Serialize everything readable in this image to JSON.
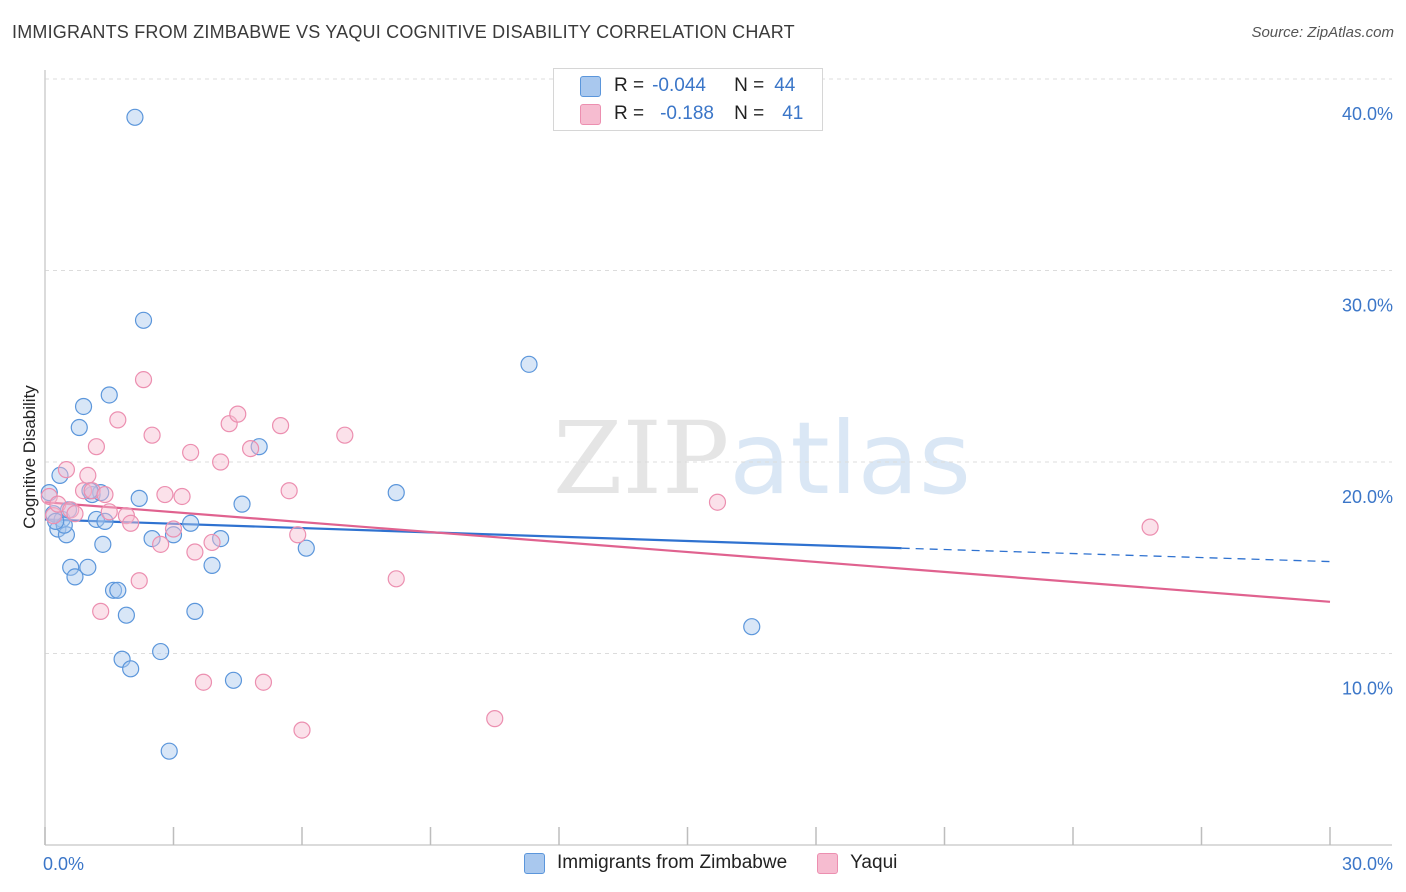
{
  "title": "IMMIGRANTS FROM ZIMBABWE VS YAQUI COGNITIVE DISABILITY CORRELATION CHART",
  "source": "Source: ZipAtlas.com",
  "watermark": {
    "zip": "ZIP",
    "atlas": "atlas"
  },
  "legend": {
    "rows": [
      {
        "r_label": "R =",
        "r_value": "-0.044",
        "n_label": "N =",
        "n_value": "44",
        "color": "#a9c8ee"
      },
      {
        "r_label": "R =",
        "r_value": "-0.188",
        "n_label": "N =",
        "n_value": "41",
        "color": "#f6bcd0"
      }
    ]
  },
  "bottom_legend": [
    {
      "label": "Immigrants from Zimbabwe",
      "color": "#a9c8ee"
    },
    {
      "label": "Yaqui",
      "color": "#f6bcd0"
    }
  ],
  "chart_data": {
    "type": "scatter",
    "title": "IMMIGRANTS FROM ZIMBABWE VS YAQUI COGNITIVE DISABILITY CORRELATION CHART",
    "ylabel": "Cognitive Disability",
    "xlabel": "",
    "xlim": [
      0,
      30
    ],
    "ylim": [
      0,
      40
    ],
    "x_tick_labels": [
      "0.0%",
      "30.0%"
    ],
    "y_ticks": [
      10,
      20,
      30,
      40
    ],
    "y_tick_labels": [
      "10.0%",
      "20.0%",
      "30.0%",
      "40.0%"
    ],
    "series": [
      {
        "name": "Immigrants from Zimbabwe",
        "stroke": "#5b96db",
        "fill": "#a9c8ee",
        "trend_color": "#2f72d0",
        "trend": {
          "x0": 0,
          "y0": 17.0,
          "x1": 20,
          "y1": 15.5,
          "x_dash_end": 30,
          "y_dash_end": 14.8
        },
        "points": [
          [
            0.1,
            18.4
          ],
          [
            0.2,
            17.3
          ],
          [
            0.3,
            16.5
          ],
          [
            0.4,
            17.0
          ],
          [
            0.5,
            16.2
          ],
          [
            0.6,
            14.5
          ],
          [
            0.7,
            14.0
          ],
          [
            0.8,
            21.8
          ],
          [
            0.9,
            22.9
          ],
          [
            1.0,
            14.5
          ],
          [
            1.1,
            18.3
          ],
          [
            1.2,
            17.0
          ],
          [
            1.3,
            18.4
          ],
          [
            1.4,
            16.9
          ],
          [
            1.5,
            23.5
          ],
          [
            1.6,
            13.3
          ],
          [
            1.7,
            13.3
          ],
          [
            1.8,
            9.7
          ],
          [
            1.9,
            12.0
          ],
          [
            2.0,
            9.2
          ],
          [
            2.2,
            18.1
          ],
          [
            2.3,
            27.4
          ],
          [
            2.5,
            16.0
          ],
          [
            2.7,
            10.1
          ],
          [
            3.0,
            16.2
          ],
          [
            3.4,
            16.8
          ],
          [
            2.1,
            38.0
          ],
          [
            2.9,
            4.9
          ],
          [
            3.5,
            12.2
          ],
          [
            3.9,
            14.6
          ],
          [
            4.1,
            16.0
          ],
          [
            4.4,
            8.6
          ],
          [
            4.6,
            17.8
          ],
          [
            5.0,
            20.8
          ],
          [
            6.1,
            15.5
          ],
          [
            8.2,
            18.4
          ],
          [
            11.3,
            25.1
          ],
          [
            16.5,
            11.4
          ],
          [
            0.35,
            19.3
          ],
          [
            0.45,
            16.7
          ],
          [
            0.55,
            17.5
          ],
          [
            1.05,
            18.5
          ],
          [
            0.25,
            16.9
          ],
          [
            1.35,
            15.7
          ]
        ]
      },
      {
        "name": "Yaqui",
        "stroke": "#ec8fb0",
        "fill": "#f6bcd0",
        "trend_color": "#e0628f",
        "trend": {
          "x0": 0,
          "y0": 17.9,
          "x1": 30,
          "y1": 12.7
        },
        "points": [
          [
            0.1,
            18.2
          ],
          [
            0.2,
            17.2
          ],
          [
            0.3,
            17.8
          ],
          [
            0.5,
            19.6
          ],
          [
            0.6,
            17.5
          ],
          [
            0.7,
            17.3
          ],
          [
            0.9,
            18.5
          ],
          [
            1.0,
            19.3
          ],
          [
            1.1,
            18.5
          ],
          [
            1.2,
            20.8
          ],
          [
            1.4,
            18.3
          ],
          [
            1.5,
            17.4
          ],
          [
            1.7,
            22.2
          ],
          [
            1.9,
            17.2
          ],
          [
            2.0,
            16.8
          ],
          [
            2.2,
            13.8
          ],
          [
            2.3,
            24.3
          ],
          [
            2.5,
            21.4
          ],
          [
            2.7,
            15.7
          ],
          [
            2.8,
            18.3
          ],
          [
            3.0,
            16.5
          ],
          [
            3.2,
            18.2
          ],
          [
            3.4,
            20.5
          ],
          [
            3.5,
            15.3
          ],
          [
            3.7,
            8.5
          ],
          [
            3.9,
            15.8
          ],
          [
            4.1,
            20.0
          ],
          [
            4.3,
            22.0
          ],
          [
            4.5,
            22.5
          ],
          [
            4.8,
            20.7
          ],
          [
            5.1,
            8.5
          ],
          [
            5.5,
            21.9
          ],
          [
            5.7,
            18.5
          ],
          [
            5.9,
            16.2
          ],
          [
            6.0,
            6.0
          ],
          [
            7.0,
            21.4
          ],
          [
            8.2,
            13.9
          ],
          [
            10.5,
            6.6
          ],
          [
            15.7,
            17.9
          ],
          [
            25.8,
            16.6
          ],
          [
            1.3,
            12.2
          ]
        ]
      }
    ]
  }
}
